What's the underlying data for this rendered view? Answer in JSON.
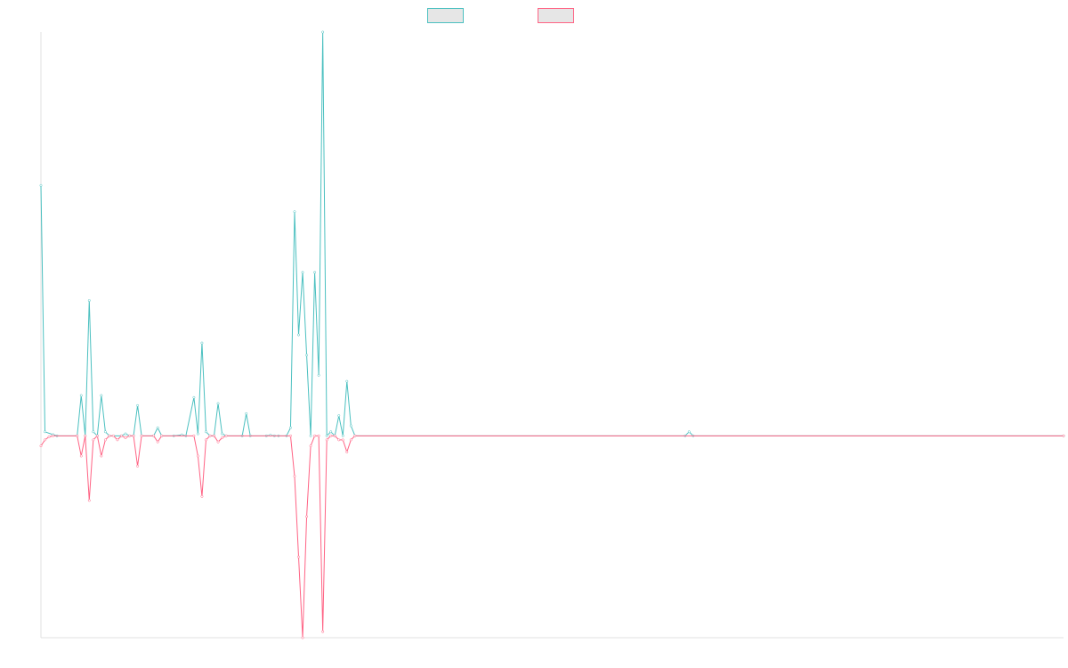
{
  "colors": {
    "series_up": "#4BC0C0",
    "series_down": "#FF6384",
    "legend_fill": "#E6E6E6",
    "axis": "#E0E0E0"
  },
  "chart_data": {
    "type": "line",
    "title": "",
    "xlabel": "",
    "ylabel": "",
    "grid": false,
    "legend_position": "top",
    "x_count": 255,
    "ylim": [
      -100,
      200
    ],
    "series": [
      {
        "color": "#4BC0C0",
        "points": [
          [
            0,
            124
          ],
          [
            1,
            2
          ],
          [
            3,
            0.6
          ],
          [
            4,
            0
          ],
          [
            9,
            0
          ],
          [
            10,
            20
          ],
          [
            11,
            0
          ],
          [
            12,
            67
          ],
          [
            13,
            2
          ],
          [
            14,
            0
          ],
          [
            15,
            20
          ],
          [
            16,
            2
          ],
          [
            17,
            0
          ],
          [
            20,
            0
          ],
          [
            21,
            1
          ],
          [
            22,
            0
          ],
          [
            23,
            0
          ],
          [
            24,
            15
          ],
          [
            25,
            0
          ],
          [
            28,
            0
          ],
          [
            29,
            4
          ],
          [
            30,
            0
          ],
          [
            33,
            0
          ],
          [
            35,
            0.5
          ],
          [
            36,
            0
          ],
          [
            38,
            19
          ],
          [
            39,
            1
          ],
          [
            40,
            46
          ],
          [
            41,
            2
          ],
          [
            42,
            0
          ],
          [
            43,
            0
          ],
          [
            44,
            16
          ],
          [
            45,
            1
          ],
          [
            46,
            0
          ],
          [
            50,
            0
          ],
          [
            51,
            11
          ],
          [
            52,
            0
          ],
          [
            56,
            0
          ],
          [
            57,
            0.3
          ],
          [
            58,
            0
          ],
          [
            59,
            0
          ],
          [
            61,
            0
          ],
          [
            62,
            4
          ],
          [
            63,
            111
          ],
          [
            64,
            50
          ],
          [
            65,
            81
          ],
          [
            66,
            40
          ],
          [
            67,
            0
          ],
          [
            68,
            81
          ],
          [
            69,
            30
          ],
          [
            70,
            200
          ],
          [
            71,
            0
          ],
          [
            72,
            2
          ],
          [
            73,
            0
          ],
          [
            74,
            10
          ],
          [
            75,
            0
          ],
          [
            76,
            27
          ],
          [
            77,
            5
          ],
          [
            78,
            0
          ],
          [
            160,
            0
          ],
          [
            161,
            2
          ],
          [
            162,
            0
          ],
          [
            254,
            0
          ]
        ]
      },
      {
        "color": "#FF6384",
        "points": [
          [
            0,
            -5
          ],
          [
            1,
            -2
          ],
          [
            2,
            -0.5
          ],
          [
            3,
            0
          ],
          [
            9,
            0
          ],
          [
            10,
            -10
          ],
          [
            11,
            0
          ],
          [
            12,
            -32
          ],
          [
            13,
            -2
          ],
          [
            14,
            0
          ],
          [
            15,
            -10
          ],
          [
            16,
            -2
          ],
          [
            17,
            0
          ],
          [
            18,
            0
          ],
          [
            19,
            -2
          ],
          [
            20,
            0
          ],
          [
            21,
            -1
          ],
          [
            22,
            0
          ],
          [
            23,
            0
          ],
          [
            24,
            -15
          ],
          [
            25,
            0
          ],
          [
            28,
            0
          ],
          [
            29,
            -3
          ],
          [
            30,
            0
          ],
          [
            38,
            0
          ],
          [
            39,
            -10
          ],
          [
            40,
            -30
          ],
          [
            41,
            -2
          ],
          [
            42,
            0
          ],
          [
            43,
            0
          ],
          [
            44,
            -3
          ],
          [
            45,
            -1
          ],
          [
            46,
            0
          ],
          [
            62,
            0
          ],
          [
            63,
            -20
          ],
          [
            64,
            -60
          ],
          [
            65,
            -100
          ],
          [
            66,
            -40
          ],
          [
            67,
            -5
          ],
          [
            68,
            0
          ],
          [
            69,
            0
          ],
          [
            70,
            -97
          ],
          [
            71,
            -2
          ],
          [
            72,
            0
          ],
          [
            73,
            0
          ],
          [
            74,
            -2
          ],
          [
            75,
            -2
          ],
          [
            76,
            -8
          ],
          [
            77,
            -2
          ],
          [
            78,
            0
          ],
          [
            254,
            0
          ]
        ]
      }
    ]
  }
}
